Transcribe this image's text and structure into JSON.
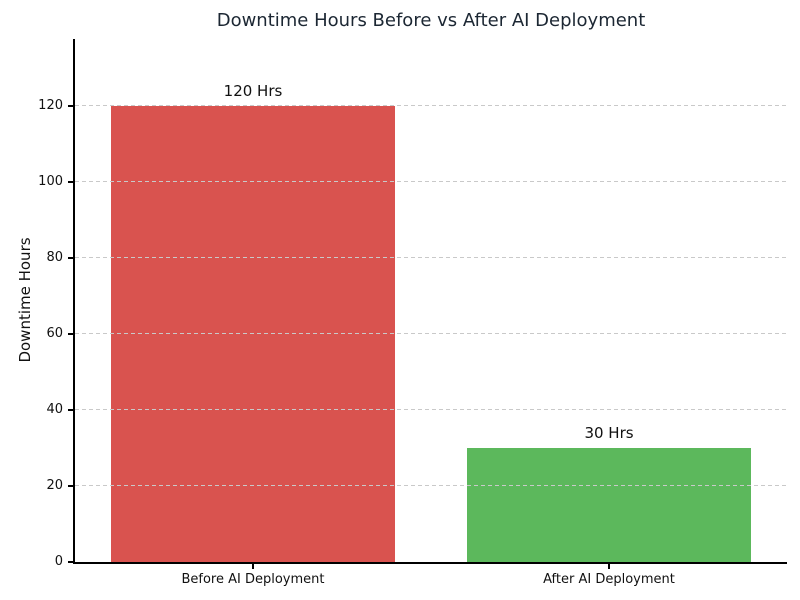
{
  "chart_data": {
    "type": "bar",
    "title": "Downtime Hours Before vs After AI Deployment",
    "categories": [
      "Before AI Deployment",
      "After AI Deployment"
    ],
    "values": [
      120,
      30
    ],
    "bar_labels": [
      "120 Hrs",
      "30 Hrs"
    ],
    "bar_colors": [
      "#d9534f",
      "#5cb85c"
    ],
    "xlabel": "",
    "ylabel": "Downtime Hours",
    "ylim": [
      0,
      137.5
    ],
    "yticks": [
      0,
      20,
      40,
      60,
      80,
      100,
      120
    ],
    "bar_width_fraction": 0.8,
    "grid": "horizontal-dashed",
    "grid_color": "#c9c9c9",
    "title_color": "#1c2733",
    "text_color": "#111111",
    "background_color": "#ffffff",
    "legend": "none"
  }
}
